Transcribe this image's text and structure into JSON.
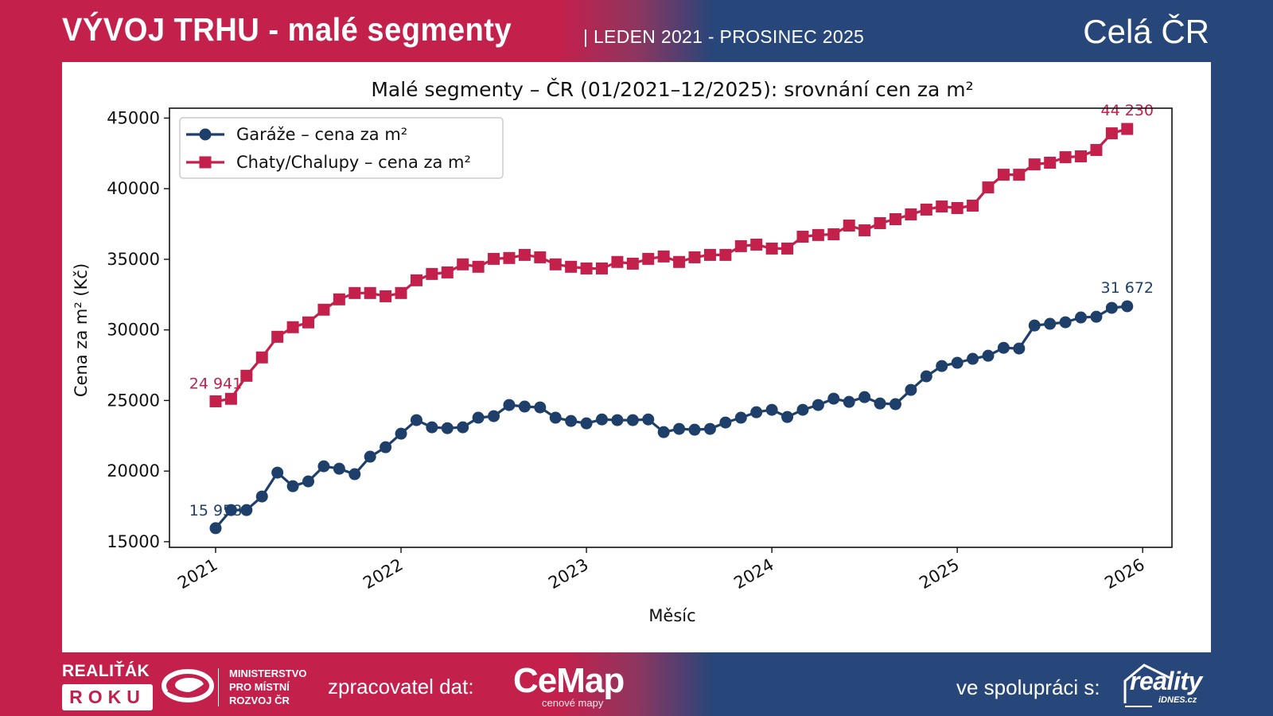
{
  "header": {
    "title": "VÝVOJ TRHU - malé segmenty",
    "period": "| LEDEN 2021 - PROSINEC 2025",
    "region": "Celá ČR"
  },
  "footer": {
    "realitak_line1": "REALIŤÁK",
    "realitak_line2": "ROKU",
    "ministry_line1": "MINISTERSTVO",
    "ministry_line2": "PRO MÍSTNÍ",
    "ministry_line3": "ROZVOJ ČR",
    "data_processor_label": "zpracovatel dat:",
    "cemap_name": "CeMap",
    "cemap_subtitle": "cenové mapy",
    "partner_label": "ve spolupráci s:",
    "partner_name": "reality",
    "partner_sub": "iDNES.cz"
  },
  "colors": {
    "brand_red": "#c4204c",
    "brand_blue": "#27467a",
    "series_garaze": "#1f3f6b",
    "series_chaty": "#c4204c"
  },
  "chart_data": {
    "type": "line",
    "title": "Malé segmenty – ČR (01/2021–12/2025): srovnání cen za m²",
    "xlabel": "Měsíc",
    "ylabel": "Cena za m² (Kč)",
    "ylim": [
      14600,
      45700
    ],
    "yticks": [
      15000,
      20000,
      25000,
      30000,
      35000,
      40000,
      45000
    ],
    "xticks": [
      "2021",
      "2022",
      "2023",
      "2024",
      "2025",
      "2026"
    ],
    "x_start": "2021-01",
    "x_end": "2025-12",
    "legend": "upper-left",
    "grid": false,
    "series": [
      {
        "name": "Garáže – cena za m²",
        "marker": "circle",
        "start_label": "15 958",
        "end_label": "31 672",
        "values": [
          15958,
          17240,
          17240,
          18200,
          19890,
          18930,
          19270,
          20340,
          20170,
          19780,
          21020,
          21690,
          22650,
          23610,
          23100,
          23040,
          23100,
          23780,
          23890,
          24680,
          24570,
          24510,
          23780,
          23550,
          23380,
          23660,
          23610,
          23610,
          23660,
          22760,
          22990,
          22930,
          22990,
          23440,
          23780,
          24170,
          24340,
          23830,
          24340,
          24680,
          25130,
          24900,
          25240,
          24790,
          24740,
          25750,
          26710,
          27440,
          27670,
          27950,
          28170,
          28730,
          28680,
          30310,
          30430,
          30540,
          30880,
          30930,
          31560,
          31672
        ]
      },
      {
        "name": "Chaty/Chalupy – cena za m²",
        "marker": "square",
        "start_label": "24 941",
        "end_label": "44 230",
        "values": [
          24941,
          25120,
          26750,
          28050,
          29510,
          30190,
          30530,
          31430,
          32160,
          32610,
          32610,
          32380,
          32610,
          33510,
          33960,
          34070,
          34640,
          34470,
          35030,
          35090,
          35310,
          35140,
          34640,
          34470,
          34350,
          34350,
          34810,
          34690,
          35030,
          35200,
          34810,
          35140,
          35310,
          35310,
          35930,
          36040,
          35760,
          35760,
          36600,
          36720,
          36770,
          37390,
          37050,
          37560,
          37840,
          38180,
          38520,
          38740,
          38630,
          38800,
          40090,
          40990,
          40990,
          41720,
          41840,
          42230,
          42290,
          42740,
          43920,
          44230
        ]
      }
    ]
  }
}
